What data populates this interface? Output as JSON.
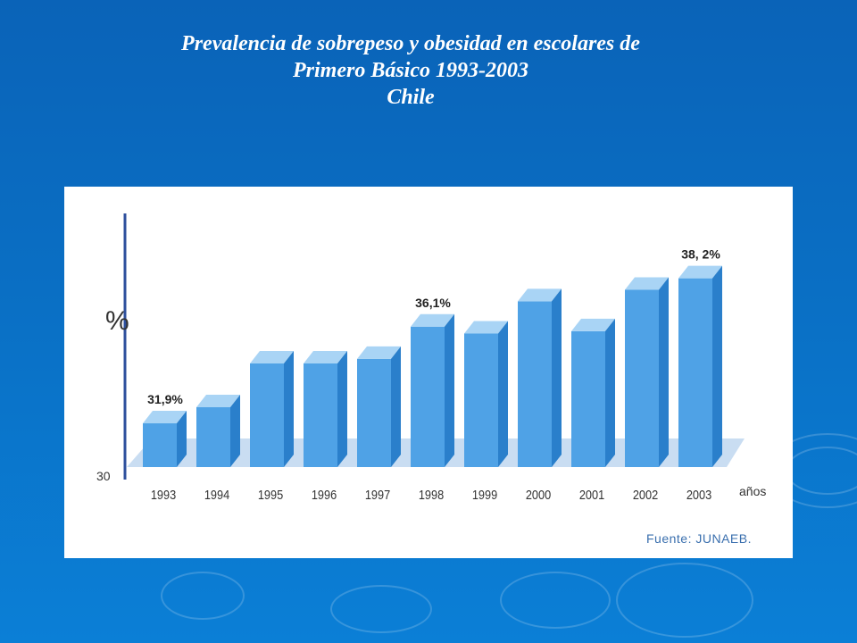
{
  "slide": {
    "title_lines": [
      "Prevalencia de sobrepeso y obesidad en escolares de",
      "Primero Básico 1993-2003",
      "Chile"
    ]
  },
  "colors": {
    "background": "#0a6fc4",
    "bar_front": "#4fa2e6",
    "bar_top": "#a9d4f5",
    "bar_side": "#2a7fcb",
    "floor": "#c9ddf2",
    "axis": "#2d4f9c"
  },
  "chart_data": {
    "type": "bar",
    "ylabel": "%",
    "xlabel": "años",
    "y_tick_labels": [
      "30"
    ],
    "ylim": [
      30,
      39
    ],
    "categories": [
      "1993",
      "1994",
      "1995",
      "1996",
      "1997",
      "1998",
      "1999",
      "2000",
      "2001",
      "2002",
      "2003"
    ],
    "values": [
      31.9,
      32.6,
      34.5,
      34.5,
      34.7,
      36.1,
      35.8,
      37.2,
      35.9,
      37.7,
      38.2
    ],
    "data_labels": [
      {
        "category": "1993",
        "text": "31,9%"
      },
      {
        "category": "1998",
        "text": "36,1%"
      },
      {
        "category": "2003",
        "text": "38, 2%"
      }
    ],
    "grid": false,
    "legend": "none"
  },
  "source": "Fuente: JUNAEB."
}
